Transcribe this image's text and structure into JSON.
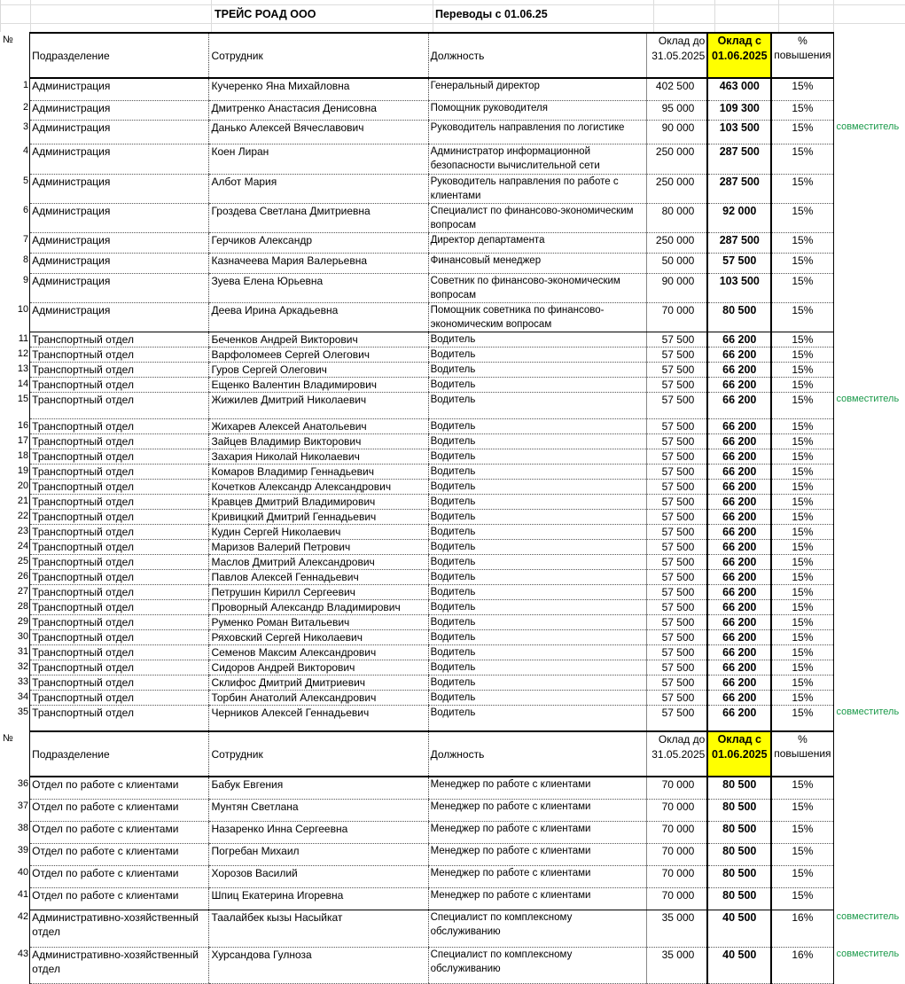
{
  "company": "ТРЕЙС РОАД ООО",
  "doc_title": "Переводы с 01.06.25",
  "header": {
    "num": "№",
    "dept": "Подразделение",
    "employee": "Сотрудник",
    "position": "Должность",
    "old_salary": "Оклад до 31.05.2025",
    "new_salary": "Оклад с 01.06.2025",
    "percent": "% повышения"
  },
  "colors": {
    "highlight": "#ffff00",
    "note": "#1a9a4a"
  },
  "rows": [
    {
      "n": "1",
      "dept": "Администрация",
      "name": "Кучеренко Яна Михайловна",
      "pos": "Генеральный директор",
      "old": "402 500",
      "new": "463 000",
      "pct": "15%",
      "note": ""
    },
    {
      "n": "2",
      "dept": "Администрация",
      "name": "Дмитренко Анастасия Денисовна",
      "pos": "Помощник руководителя",
      "old": "95 000",
      "new": "109 300",
      "pct": "15%",
      "note": ""
    },
    {
      "n": "3",
      "dept": "Администрация",
      "name": "Данько Алексей Вячеславович",
      "pos": "Руководитель направления по логистике",
      "old": "90 000",
      "new": "103 500",
      "pct": "15%",
      "note": "совместитель"
    },
    {
      "n": "4",
      "dept": "Администрация",
      "name": "Коен Лиран",
      "pos": "Администратор информационной безопасности вычислительной сети",
      "old": "250 000",
      "new": "287 500",
      "pct": "15%",
      "note": ""
    },
    {
      "n": "5",
      "dept": "Администрация",
      "name": "Албот Мария",
      "pos": "Руководитель направления по работе с клиентами",
      "old": "250 000",
      "new": "287 500",
      "pct": "15%",
      "note": ""
    },
    {
      "n": "6",
      "dept": "Администрация",
      "name": "Гроздева Светлана Дмитриевна",
      "pos": "Специалист по финансово-экономическим вопросам",
      "old": "80 000",
      "new": "92 000",
      "pct": "15%",
      "note": ""
    },
    {
      "n": "7",
      "dept": "Администрация",
      "name": "Герчиков Александр",
      "pos": "Директор департамента",
      "old": "250 000",
      "new": "287 500",
      "pct": "15%",
      "note": ""
    },
    {
      "n": "8",
      "dept": "Администрация",
      "name": "Казначеева Мария Валерьевна",
      "pos": "Финансовый менеджер",
      "old": "50 000",
      "new": "57 500",
      "pct": "15%",
      "note": ""
    },
    {
      "n": "9",
      "dept": "Администрация",
      "name": "Зуева Елена Юрьевна",
      "pos": "Советник по финансово-экономическим вопросам",
      "old": "90 000",
      "new": "103 500",
      "pct": "15%",
      "note": ""
    },
    {
      "n": "10",
      "dept": "Администрация",
      "name": "Деева Ирина Аркадьевна",
      "pos": "Помощник советника по финансово-экономическим вопросам",
      "old": "70 000",
      "new": "80 500",
      "pct": "15%",
      "note": ""
    },
    {
      "n": "11",
      "dept": "Транспортный отдел",
      "name": "Беченков Андрей Викторович",
      "pos": "Водитель",
      "old": "57 500",
      "new": "66 200",
      "pct": "15%",
      "note": ""
    },
    {
      "n": "12",
      "dept": "Транспортный отдел",
      "name": "Варфоломеев Сергей Олегович",
      "pos": "Водитель",
      "old": "57 500",
      "new": "66 200",
      "pct": "15%",
      "note": ""
    },
    {
      "n": "13",
      "dept": "Транспортный отдел",
      "name": "Гуров Сергей Олегович",
      "pos": "Водитель",
      "old": "57 500",
      "new": "66 200",
      "pct": "15%",
      "note": ""
    },
    {
      "n": "14",
      "dept": "Транспортный отдел",
      "name": "Ещенко Валентин Владимирович",
      "pos": "Водитель",
      "old": "57 500",
      "new": "66 200",
      "pct": "15%",
      "note": ""
    },
    {
      "n": "15",
      "dept": "Транспортный отдел",
      "name": "Жижилев Дмитрий Николаевич",
      "pos": "Водитель",
      "old": "57 500",
      "new": "66 200",
      "pct": "15%",
      "note": "совместитель"
    },
    {
      "n": "16",
      "dept": "Транспортный отдел",
      "name": "Жихарев Алексей Анатольевич",
      "pos": "Водитель",
      "old": "57 500",
      "new": "66 200",
      "pct": "15%",
      "note": ""
    },
    {
      "n": "17",
      "dept": "Транспортный отдел",
      "name": "Зайцев Владимир Викторович",
      "pos": "Водитель",
      "old": "57 500",
      "new": "66 200",
      "pct": "15%",
      "note": ""
    },
    {
      "n": "18",
      "dept": "Транспортный отдел",
      "name": "Захария Николай Николаевич",
      "pos": "Водитель",
      "old": "57 500",
      "new": "66 200",
      "pct": "15%",
      "note": ""
    },
    {
      "n": "19",
      "dept": "Транспортный отдел",
      "name": "Комаров Владимир Геннадьевич",
      "pos": "Водитель",
      "old": "57 500",
      "new": "66 200",
      "pct": "15%",
      "note": ""
    },
    {
      "n": "20",
      "dept": "Транспортный отдел",
      "name": "Кочетков Александр Александрович",
      "pos": "Водитель",
      "old": "57 500",
      "new": "66 200",
      "pct": "15%",
      "note": ""
    },
    {
      "n": "21",
      "dept": "Транспортный отдел",
      "name": "Кравцев Дмитрий Владимирович",
      "pos": "Водитель",
      "old": "57 500",
      "new": "66 200",
      "pct": "15%",
      "note": ""
    },
    {
      "n": "22",
      "dept": "Транспортный отдел",
      "name": "Кривицкий Дмитрий Геннадьевич",
      "pos": "Водитель",
      "old": "57 500",
      "new": "66 200",
      "pct": "15%",
      "note": ""
    },
    {
      "n": "23",
      "dept": "Транспортный отдел",
      "name": "Кудин Сергей Николаевич",
      "pos": "Водитель",
      "old": "57 500",
      "new": "66 200",
      "pct": "15%",
      "note": ""
    },
    {
      "n": "24",
      "dept": "Транспортный отдел",
      "name": "Маризов Валерий Петрович",
      "pos": "Водитель",
      "old": "57 500",
      "new": "66 200",
      "pct": "15%",
      "note": ""
    },
    {
      "n": "25",
      "dept": "Транспортный отдел",
      "name": "Маслов Дмитрий Александрович",
      "pos": "Водитель",
      "old": "57 500",
      "new": "66 200",
      "pct": "15%",
      "note": ""
    },
    {
      "n": "26",
      "dept": "Транспортный отдел",
      "name": "Павлов Алексей Геннадьевич",
      "pos": "Водитель",
      "old": "57 500",
      "new": "66 200",
      "pct": "15%",
      "note": ""
    },
    {
      "n": "27",
      "dept": "Транспортный отдел",
      "name": "Петрушин Кирилл Сергеевич",
      "pos": "Водитель",
      "old": "57 500",
      "new": "66 200",
      "pct": "15%",
      "note": ""
    },
    {
      "n": "28",
      "dept": "Транспортный отдел",
      "name": "Проворный Александр Владимирович",
      "pos": "Водитель",
      "old": "57 500",
      "new": "66 200",
      "pct": "15%",
      "note": ""
    },
    {
      "n": "29",
      "dept": "Транспортный отдел",
      "name": "Руменко Роман Витальевич",
      "pos": "Водитель",
      "old": "57 500",
      "new": "66 200",
      "pct": "15%",
      "note": ""
    },
    {
      "n": "30",
      "dept": "Транспортный отдел",
      "name": "Ряховский Сергей Николаевич",
      "pos": "Водитель",
      "old": "57 500",
      "new": "66 200",
      "pct": "15%",
      "note": ""
    },
    {
      "n": "31",
      "dept": "Транспортный отдел",
      "name": "Семенов Максим Александрович",
      "pos": "Водитель",
      "old": "57 500",
      "new": "66 200",
      "pct": "15%",
      "note": ""
    },
    {
      "n": "32",
      "dept": "Транспортный отдел",
      "name": "Сидоров Андрей Викторович",
      "pos": "Водитель",
      "old": "57 500",
      "new": "66 200",
      "pct": "15%",
      "note": ""
    },
    {
      "n": "33",
      "dept": "Транспортный отдел",
      "name": "Склифос Дмитрий Дмитриевич",
      "pos": "Водитель",
      "old": "57 500",
      "new": "66 200",
      "pct": "15%",
      "note": ""
    },
    {
      "n": "34",
      "dept": "Транспортный отдел",
      "name": "Торбин Анатолий Александрович",
      "pos": "Водитель",
      "old": "57 500",
      "new": "66 200",
      "pct": "15%",
      "note": ""
    },
    {
      "n": "35",
      "dept": "Транспортный отдел",
      "name": "Черников Алексей Геннадьевич",
      "pos": "Водитель",
      "old": "57 500",
      "new": "66 200",
      "pct": "15%",
      "note": "совместитель"
    },
    {
      "n": "36",
      "dept": "Отдел по работе с клиентами",
      "name": "Бабук Евгения",
      "pos": "Менеджер по работе с клиентами",
      "old": "70 000",
      "new": "80 500",
      "pct": "15%",
      "note": ""
    },
    {
      "n": "37",
      "dept": "Отдел по работе с клиентами",
      "name": "Мунтян Светлана",
      "pos": "Менеджер по работе с клиентами",
      "old": "70 000",
      "new": "80 500",
      "pct": "15%",
      "note": ""
    },
    {
      "n": "38",
      "dept": "Отдел по работе с клиентами",
      "name": "Назаренко Инна Сергеевна",
      "pos": "Менеджер по работе с клиентами",
      "old": "70 000",
      "new": "80 500",
      "pct": "15%",
      "note": ""
    },
    {
      "n": "39",
      "dept": "Отдел по работе с клиентами",
      "name": "Погребан Михаил",
      "pos": "Менеджер по работе с клиентами",
      "old": "70 000",
      "new": "80 500",
      "pct": "15%",
      "note": ""
    },
    {
      "n": "40",
      "dept": "Отдел по работе с клиентами",
      "name": "Хорозов Василий",
      "pos": "Менеджер по работе с клиентами",
      "old": "70 000",
      "new": "80 500",
      "pct": "15%",
      "note": ""
    },
    {
      "n": "41",
      "dept": "Отдел по работе с клиентами",
      "name": "Шпиц Екатерина Игоревна",
      "pos": "Менеджер по работе с клиентами",
      "old": "70 000",
      "new": "80 500",
      "pct": "15%",
      "note": ""
    },
    {
      "n": "42",
      "dept": "Административно-хозяйственный отдел",
      "name": "Таалайбек кызы Насыйкат",
      "pos": "Специалист по комплексному обслуживанию",
      "old": "35 000",
      "new": "40 500",
      "pct": "16%",
      "note": "совместитель"
    },
    {
      "n": "43",
      "dept": "Административно-хозяйственный отдел",
      "name": "Хурсандова Гулноза",
      "pos": "Специалист по комплексному обслуживанию",
      "old": "35 000",
      "new": "40 500",
      "pct": "16%",
      "note": "совместитель"
    }
  ]
}
